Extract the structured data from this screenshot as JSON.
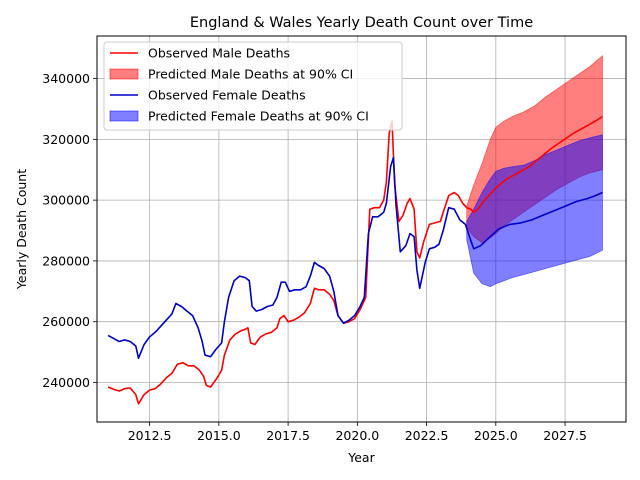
{
  "chart_data": {
    "type": "line",
    "title": "England & Wales Yearly Death Count over Time",
    "xlabel": "Year",
    "ylabel": "Yearly Death Count",
    "xlim": [
      2010.6,
      2029.7
    ],
    "ylim": [
      227000,
      354000
    ],
    "xticks": [
      2012.5,
      2015.0,
      2017.5,
      2020.0,
      2022.5,
      2025.0,
      2027.5
    ],
    "xtick_labels": [
      "2012.5",
      "2015.0",
      "2017.5",
      "2020.0",
      "2022.5",
      "2025.0",
      "2027.5"
    ],
    "yticks": [
      240000,
      260000,
      280000,
      300000,
      320000,
      340000
    ],
    "ytick_labels": [
      "240000",
      "260000",
      "280000",
      "300000",
      "320000",
      "340000"
    ],
    "grid": true,
    "legend_position": "upper-left",
    "colors": {
      "male": "#ff0000",
      "female": "#0000cc",
      "male_band": "#ff0000",
      "female_band": "#0000ff"
    },
    "series": [
      {
        "name": "Observed Male Deaths",
        "kind": "line",
        "color": "#ff0000",
        "points": [
          [
            2011.0,
            238500
          ],
          [
            2011.2,
            237800
          ],
          [
            2011.4,
            237200
          ],
          [
            2011.6,
            238000
          ],
          [
            2011.8,
            238200
          ],
          [
            2012.0,
            236000
          ],
          [
            2012.1,
            233000
          ],
          [
            2012.3,
            236000
          ],
          [
            2012.5,
            237500
          ],
          [
            2012.7,
            238000
          ],
          [
            2012.9,
            239500
          ],
          [
            2013.1,
            241500
          ],
          [
            2013.3,
            243000
          ],
          [
            2013.5,
            246000
          ],
          [
            2013.7,
            246500
          ],
          [
            2013.9,
            245500
          ],
          [
            2014.1,
            245500
          ],
          [
            2014.3,
            244000
          ],
          [
            2014.45,
            242000
          ],
          [
            2014.55,
            239000
          ],
          [
            2014.7,
            238500
          ],
          [
            2014.9,
            241000
          ],
          [
            2015.0,
            242500
          ],
          [
            2015.1,
            244000
          ],
          [
            2015.2,
            249000
          ],
          [
            2015.4,
            254000
          ],
          [
            2015.6,
            256000
          ],
          [
            2015.8,
            257000
          ],
          [
            2015.95,
            257500
          ],
          [
            2016.05,
            258000
          ],
          [
            2016.15,
            253000
          ],
          [
            2016.3,
            252500
          ],
          [
            2016.5,
            255000
          ],
          [
            2016.7,
            256000
          ],
          [
            2016.9,
            256500
          ],
          [
            2017.1,
            258000
          ],
          [
            2017.2,
            261000
          ],
          [
            2017.35,
            262000
          ],
          [
            2017.5,
            260000
          ],
          [
            2017.7,
            260500
          ],
          [
            2017.9,
            261500
          ],
          [
            2018.1,
            263000
          ],
          [
            2018.3,
            266000
          ],
          [
            2018.45,
            271000
          ],
          [
            2018.6,
            270500
          ],
          [
            2018.8,
            270500
          ],
          [
            2019.0,
            269000
          ],
          [
            2019.15,
            267000
          ],
          [
            2019.3,
            262000
          ],
          [
            2019.5,
            259500
          ],
          [
            2019.7,
            260000
          ],
          [
            2019.9,
            261000
          ],
          [
            2020.1,
            264000
          ],
          [
            2020.2,
            266000
          ],
          [
            2020.3,
            268000
          ],
          [
            2020.45,
            297000
          ],
          [
            2020.6,
            297500
          ],
          [
            2020.8,
            297500
          ],
          [
            2020.95,
            300000
          ],
          [
            2021.05,
            306000
          ],
          [
            2021.15,
            322000
          ],
          [
            2021.25,
            326000
          ],
          [
            2021.35,
            305000
          ],
          [
            2021.5,
            293000
          ],
          [
            2021.65,
            295000
          ],
          [
            2021.8,
            299000
          ],
          [
            2021.9,
            300500
          ],
          [
            2022.05,
            297000
          ],
          [
            2022.15,
            283000
          ],
          [
            2022.25,
            281000
          ],
          [
            2022.4,
            286500
          ],
          [
            2022.6,
            292000
          ],
          [
            2022.8,
            292500
          ],
          [
            2023.0,
            293000
          ],
          [
            2023.1,
            296000
          ],
          [
            2023.3,
            301500
          ],
          [
            2023.5,
            302500
          ],
          [
            2023.65,
            301500
          ],
          [
            2023.8,
            299000
          ],
          [
            2023.95,
            297500
          ],
          [
            2024.1,
            297000
          ],
          [
            2024.2,
            296000
          ],
          [
            2024.35,
            297000
          ],
          [
            2024.6,
            300000
          ],
          [
            2025.0,
            304000
          ],
          [
            2025.4,
            307000
          ],
          [
            2025.8,
            309000
          ],
          [
            2026.2,
            311000
          ],
          [
            2026.6,
            314000
          ],
          [
            2027.0,
            317000
          ],
          [
            2027.4,
            319500
          ],
          [
            2027.8,
            322000
          ],
          [
            2028.2,
            324000
          ],
          [
            2028.6,
            326000
          ],
          [
            2028.85,
            327500
          ]
        ]
      },
      {
        "name": "Predicted Male Deaths at 90% CI",
        "kind": "band",
        "color": "#ff0000",
        "x": [
          2023.95,
          2024.2,
          2024.5,
          2024.8,
          2025.0,
          2025.3,
          2025.6,
          2026.0,
          2026.4,
          2026.8,
          2027.2,
          2027.6,
          2028.0,
          2028.4,
          2028.85
        ],
        "lower": [
          291000,
          288000,
          286000,
          287500,
          289000,
          291500,
          293500,
          296000,
          298500,
          301000,
          303500,
          305500,
          307500,
          309000,
          310000
        ],
        "upper": [
          298000,
          305000,
          312000,
          320000,
          324000,
          326000,
          327500,
          329000,
          331000,
          334000,
          336500,
          339000,
          341500,
          344000,
          347500
        ]
      },
      {
        "name": "Observed Female Deaths",
        "kind": "line",
        "color": "#0000cc",
        "points": [
          [
            2011.0,
            255500
          ],
          [
            2011.2,
            254500
          ],
          [
            2011.4,
            253500
          ],
          [
            2011.6,
            254000
          ],
          [
            2011.8,
            253500
          ],
          [
            2012.0,
            252000
          ],
          [
            2012.1,
            248000
          ],
          [
            2012.3,
            252500
          ],
          [
            2012.5,
            255000
          ],
          [
            2012.7,
            256500
          ],
          [
            2012.9,
            258500
          ],
          [
            2013.1,
            260500
          ],
          [
            2013.3,
            262500
          ],
          [
            2013.45,
            266000
          ],
          [
            2013.65,
            265000
          ],
          [
            2013.85,
            263500
          ],
          [
            2014.05,
            262000
          ],
          [
            2014.25,
            258000
          ],
          [
            2014.4,
            253500
          ],
          [
            2014.5,
            249000
          ],
          [
            2014.7,
            248500
          ],
          [
            2014.9,
            251000
          ],
          [
            2015.1,
            253000
          ],
          [
            2015.2,
            260000
          ],
          [
            2015.35,
            268000
          ],
          [
            2015.55,
            273500
          ],
          [
            2015.75,
            275000
          ],
          [
            2015.95,
            274500
          ],
          [
            2016.1,
            273500
          ],
          [
            2016.2,
            265000
          ],
          [
            2016.35,
            263500
          ],
          [
            2016.55,
            264000
          ],
          [
            2016.75,
            265000
          ],
          [
            2016.95,
            265500
          ],
          [
            2017.1,
            268000
          ],
          [
            2017.25,
            273000
          ],
          [
            2017.4,
            273000
          ],
          [
            2017.55,
            270000
          ],
          [
            2017.75,
            270500
          ],
          [
            2017.95,
            270500
          ],
          [
            2018.15,
            271500
          ],
          [
            2018.3,
            275000
          ],
          [
            2018.45,
            279500
          ],
          [
            2018.6,
            278500
          ],
          [
            2018.8,
            277500
          ],
          [
            2019.0,
            275000
          ],
          [
            2019.15,
            270000
          ],
          [
            2019.3,
            262000
          ],
          [
            2019.5,
            259500
          ],
          [
            2019.7,
            260500
          ],
          [
            2019.9,
            262000
          ],
          [
            2020.1,
            265000
          ],
          [
            2020.25,
            268000
          ],
          [
            2020.4,
            289000
          ],
          [
            2020.55,
            294500
          ],
          [
            2020.75,
            294500
          ],
          [
            2020.95,
            296000
          ],
          [
            2021.05,
            299000
          ],
          [
            2021.2,
            311000
          ],
          [
            2021.3,
            314000
          ],
          [
            2021.4,
            298000
          ],
          [
            2021.55,
            283000
          ],
          [
            2021.75,
            285000
          ],
          [
            2021.9,
            289000
          ],
          [
            2022.05,
            288000
          ],
          [
            2022.15,
            277000
          ],
          [
            2022.25,
            271000
          ],
          [
            2022.45,
            279500
          ],
          [
            2022.6,
            284000
          ],
          [
            2022.8,
            284500
          ],
          [
            2022.95,
            285500
          ],
          [
            2023.1,
            290000
          ],
          [
            2023.3,
            297500
          ],
          [
            2023.5,
            297000
          ],
          [
            2023.7,
            293500
          ],
          [
            2023.9,
            292000
          ],
          [
            2024.05,
            288000
          ],
          [
            2024.2,
            284000
          ],
          [
            2024.45,
            285000
          ],
          [
            2024.8,
            288000
          ],
          [
            2025.1,
            290500
          ],
          [
            2025.5,
            292000
          ],
          [
            2025.9,
            292500
          ],
          [
            2026.3,
            293500
          ],
          [
            2026.7,
            295000
          ],
          [
            2027.1,
            296500
          ],
          [
            2027.5,
            298000
          ],
          [
            2027.9,
            299500
          ],
          [
            2028.3,
            300500
          ],
          [
            2028.6,
            301500
          ],
          [
            2028.85,
            302500
          ]
        ]
      },
      {
        "name": "Predicted Female Deaths at 90% CI",
        "kind": "band",
        "color": "#0000ff",
        "x": [
          2023.95,
          2024.2,
          2024.5,
          2024.8,
          2025.0,
          2025.3,
          2025.6,
          2026.0,
          2026.4,
          2026.8,
          2027.2,
          2027.6,
          2028.0,
          2028.4,
          2028.85
        ],
        "lower": [
          287000,
          276000,
          272500,
          271500,
          272500,
          273500,
          274500,
          275500,
          276500,
          277500,
          278500,
          279500,
          280500,
          281500,
          283500
        ],
        "upper": [
          293000,
          297000,
          302500,
          307000,
          309500,
          310500,
          311000,
          311500,
          313000,
          315000,
          316500,
          318000,
          319500,
          320500,
          321500
        ]
      }
    ]
  }
}
